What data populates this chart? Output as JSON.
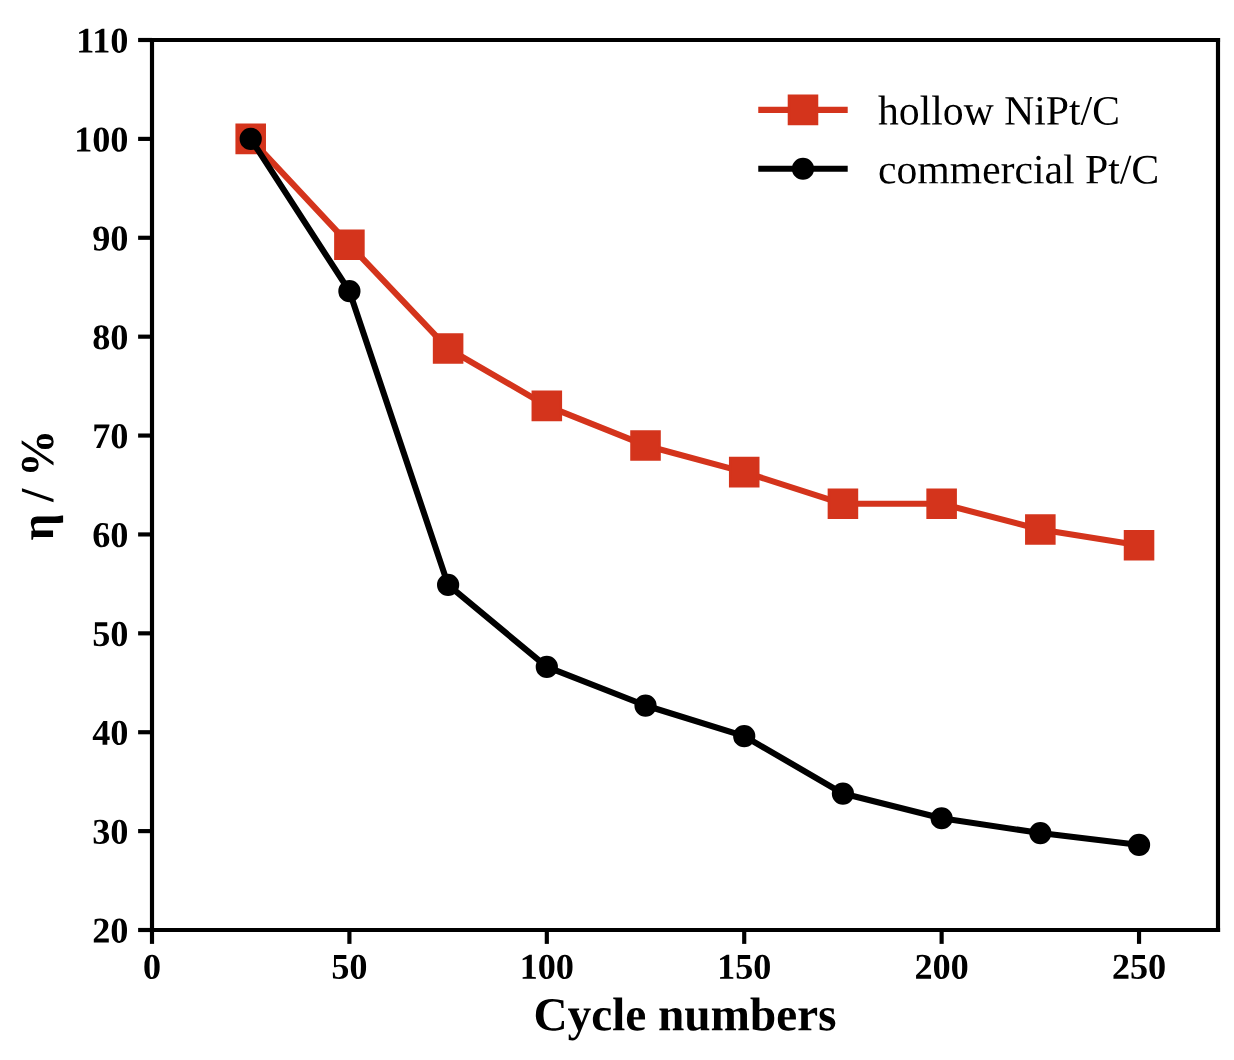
{
  "chart_data": {
    "type": "line",
    "xlabel": "Cycle numbers",
    "ylabel": "η / %",
    "x": [
      25,
      50,
      75,
      100,
      125,
      150,
      175,
      200,
      225,
      250
    ],
    "series": [
      {
        "name": "hollow NiPt/C",
        "color": "#d4341c",
        "marker": "square",
        "values": [
          100,
          89.3,
          78.8,
          73,
          69,
          66.3,
          63.1,
          63.1,
          60.5,
          58.9
        ]
      },
      {
        "name": "commercial Pt/C",
        "color": "#000000",
        "marker": "circle",
        "values": [
          100,
          84.6,
          54.9,
          46.6,
          42.7,
          39.6,
          33.8,
          31.3,
          29.8,
          28.6
        ]
      }
    ],
    "xlim": [
      0,
      270
    ],
    "xticks": [
      0,
      50,
      100,
      150,
      200,
      250
    ],
    "ylim": [
      20,
      110
    ],
    "yticks": [
      20,
      30,
      40,
      50,
      60,
      70,
      80,
      90,
      100,
      110
    ],
    "legend": "top right",
    "grid": false,
    "line_style": "solid"
  }
}
